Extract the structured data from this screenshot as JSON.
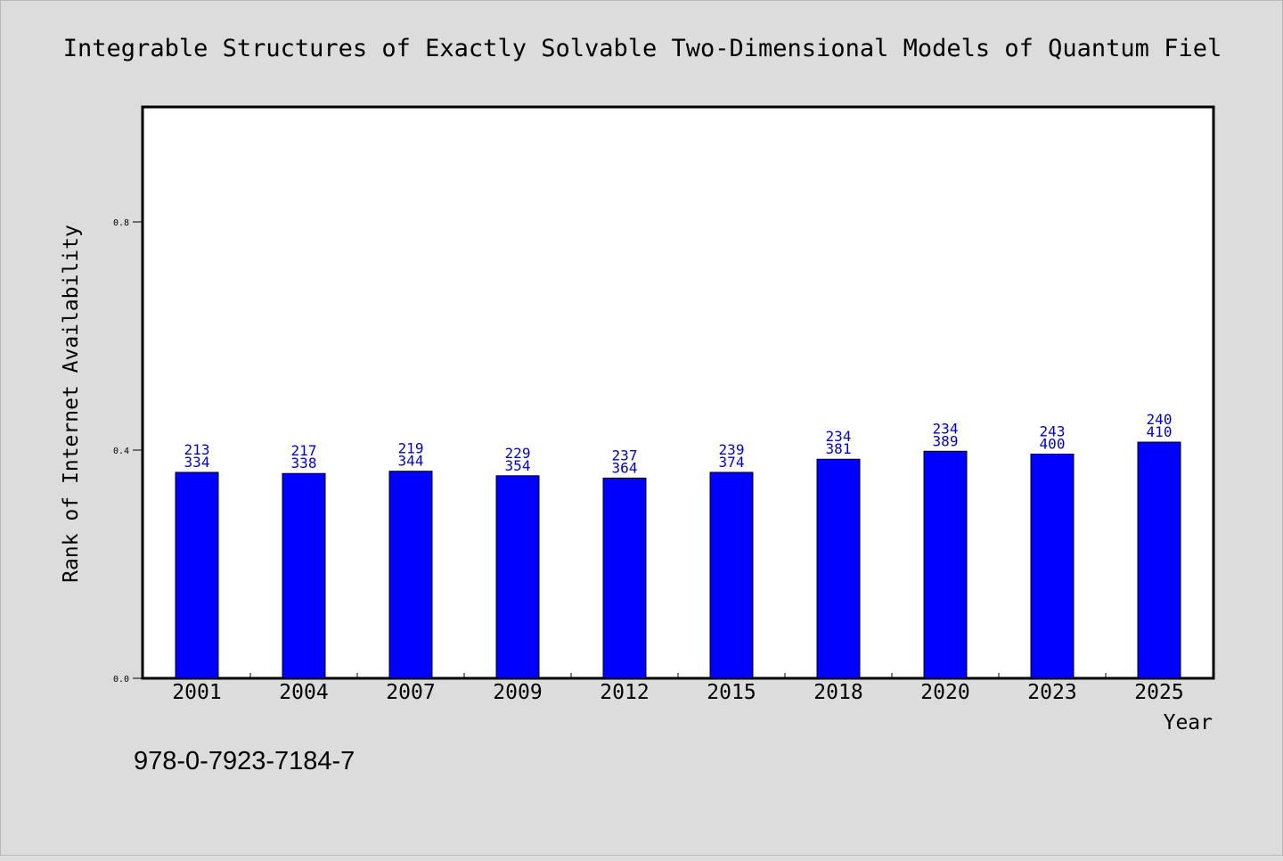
{
  "chart_data": {
    "type": "bar",
    "title": "Integrable Structures of Exactly Solvable Two-Dimensional Models of Quantum Fiel",
    "xlabel": "Year",
    "ylabel": "Rank of Internet Availability",
    "footer_text": "978-0-7923-7184-7",
    "categories": [
      "2001",
      "2004",
      "2007",
      "2009",
      "2012",
      "2015",
      "2018",
      "2020",
      "2023",
      "2025"
    ],
    "values": [
      0.361,
      0.359,
      0.363,
      0.355,
      0.351,
      0.361,
      0.384,
      0.398,
      0.393,
      0.414
    ],
    "labels_top": [
      "213",
      "217",
      "219",
      "229",
      "237",
      "239",
      "234",
      "234",
      "243",
      "240"
    ],
    "labels_bottom": [
      "334",
      "338",
      "344",
      "354",
      "364",
      "374",
      "381",
      "389",
      "400",
      "410"
    ],
    "ylim": [
      0,
      1.0
    ],
    "yticks": [
      "0.0",
      "0.4",
      "0.8"
    ],
    "grid": false,
    "colors": {
      "bar": "#0000ff",
      "bar_stroke": "#000000",
      "label": "#0000cc",
      "plot_bg": "#ffffff",
      "figure_bg": "#dcdcdc"
    }
  }
}
